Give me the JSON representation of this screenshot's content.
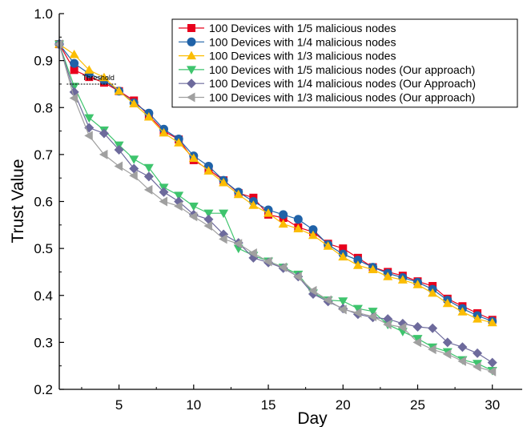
{
  "chart_data": {
    "type": "line",
    "xlabel": "Day",
    "ylabel": "Trust Value",
    "xlim": [
      1,
      32
    ],
    "ylim": [
      0.2,
      1.0
    ],
    "x_ticks": [
      5,
      10,
      15,
      20,
      25,
      30
    ],
    "y_ticks": [
      0.2,
      0.3,
      0.4,
      0.5,
      0.6,
      0.7,
      0.8,
      0.9,
      1.0
    ],
    "x_tick_labels": [
      "5",
      "10",
      "15",
      "20",
      "25",
      "30"
    ],
    "y_tick_labels": [
      "0.2",
      "0.3",
      "0.4",
      "0.5",
      "0.6",
      "0.7",
      "0.8",
      "0.9",
      "1.0"
    ],
    "grid": false,
    "legend_position": "top-right",
    "threshold": {
      "label": "Threshold",
      "value": 0.85,
      "x_range": [
        1.5,
        4.8
      ]
    },
    "x": [
      1,
      2,
      3,
      4,
      5,
      6,
      7,
      8,
      9,
      10,
      11,
      12,
      13,
      14,
      15,
      16,
      17,
      18,
      19,
      20,
      21,
      22,
      23,
      24,
      25,
      26,
      27,
      28,
      29,
      30
    ],
    "series": [
      {
        "name": "100 Devices with 1/5 malicious nodes",
        "color": "#e8001c",
        "marker": "square",
        "values": [
          0.935,
          0.88,
          0.865,
          0.853,
          0.835,
          0.815,
          0.783,
          0.75,
          0.732,
          0.688,
          0.668,
          0.645,
          0.618,
          0.608,
          0.572,
          0.565,
          0.545,
          0.535,
          0.51,
          0.5,
          0.48,
          0.46,
          0.45,
          0.442,
          0.43,
          0.42,
          0.393,
          0.377,
          0.362,
          0.348
        ]
      },
      {
        "name": "100 Devices with 1/4 malicious nodes",
        "color": "#1f62a8",
        "marker": "circle",
        "values": [
          0.935,
          0.894,
          0.872,
          0.858,
          0.835,
          0.81,
          0.788,
          0.754,
          0.733,
          0.697,
          0.675,
          0.645,
          0.62,
          0.6,
          0.582,
          0.572,
          0.562,
          0.54,
          0.508,
          0.488,
          0.475,
          0.46,
          0.447,
          0.438,
          0.428,
          0.413,
          0.39,
          0.372,
          0.357,
          0.345
        ]
      },
      {
        "name": "100 Devices with 1/3 malicious nodes",
        "color": "#fbbd04",
        "marker": "triangle-up",
        "values": [
          0.935,
          0.913,
          0.88,
          0.864,
          0.835,
          0.808,
          0.78,
          0.746,
          0.725,
          0.692,
          0.665,
          0.64,
          0.615,
          0.592,
          0.575,
          0.552,
          0.542,
          0.528,
          0.505,
          0.482,
          0.464,
          0.455,
          0.44,
          0.433,
          0.423,
          0.405,
          0.383,
          0.365,
          0.35,
          0.342
        ]
      },
      {
        "name": "100 Devices with 1/5 malicious nodes (Our approach)",
        "color": "#3ec46d",
        "marker": "triangle-down",
        "values": [
          0.935,
          0.845,
          0.778,
          0.752,
          0.72,
          0.69,
          0.672,
          0.63,
          0.613,
          0.59,
          0.575,
          0.575,
          0.5,
          0.485,
          0.473,
          0.46,
          0.445,
          0.405,
          0.39,
          0.388,
          0.372,
          0.366,
          0.338,
          0.323,
          0.308,
          0.29,
          0.28,
          0.263,
          0.255,
          0.24
        ]
      },
      {
        "name": "100 Devices with 1/4 malicious nodes (Our Approach)",
        "color": "#6d6a9c",
        "marker": "diamond",
        "values": [
          0.935,
          0.833,
          0.757,
          0.745,
          0.71,
          0.67,
          0.653,
          0.62,
          0.6,
          0.572,
          0.562,
          0.53,
          0.512,
          0.48,
          0.47,
          0.458,
          0.44,
          0.403,
          0.387,
          0.372,
          0.36,
          0.353,
          0.35,
          0.34,
          0.333,
          0.33,
          0.3,
          0.29,
          0.277,
          0.257
        ]
      },
      {
        "name": "100 Devices with 1/3 malicious nodes (Our approach)",
        "color": "#a0a0a0",
        "marker": "triangle-left",
        "values": [
          0.935,
          0.82,
          0.74,
          0.7,
          0.675,
          0.655,
          0.625,
          0.6,
          0.59,
          0.568,
          0.548,
          0.52,
          0.51,
          0.49,
          0.472,
          0.46,
          0.44,
          0.41,
          0.39,
          0.37,
          0.363,
          0.355,
          0.338,
          0.332,
          0.3,
          0.285,
          0.275,
          0.26,
          0.248,
          0.238
        ]
      }
    ]
  }
}
